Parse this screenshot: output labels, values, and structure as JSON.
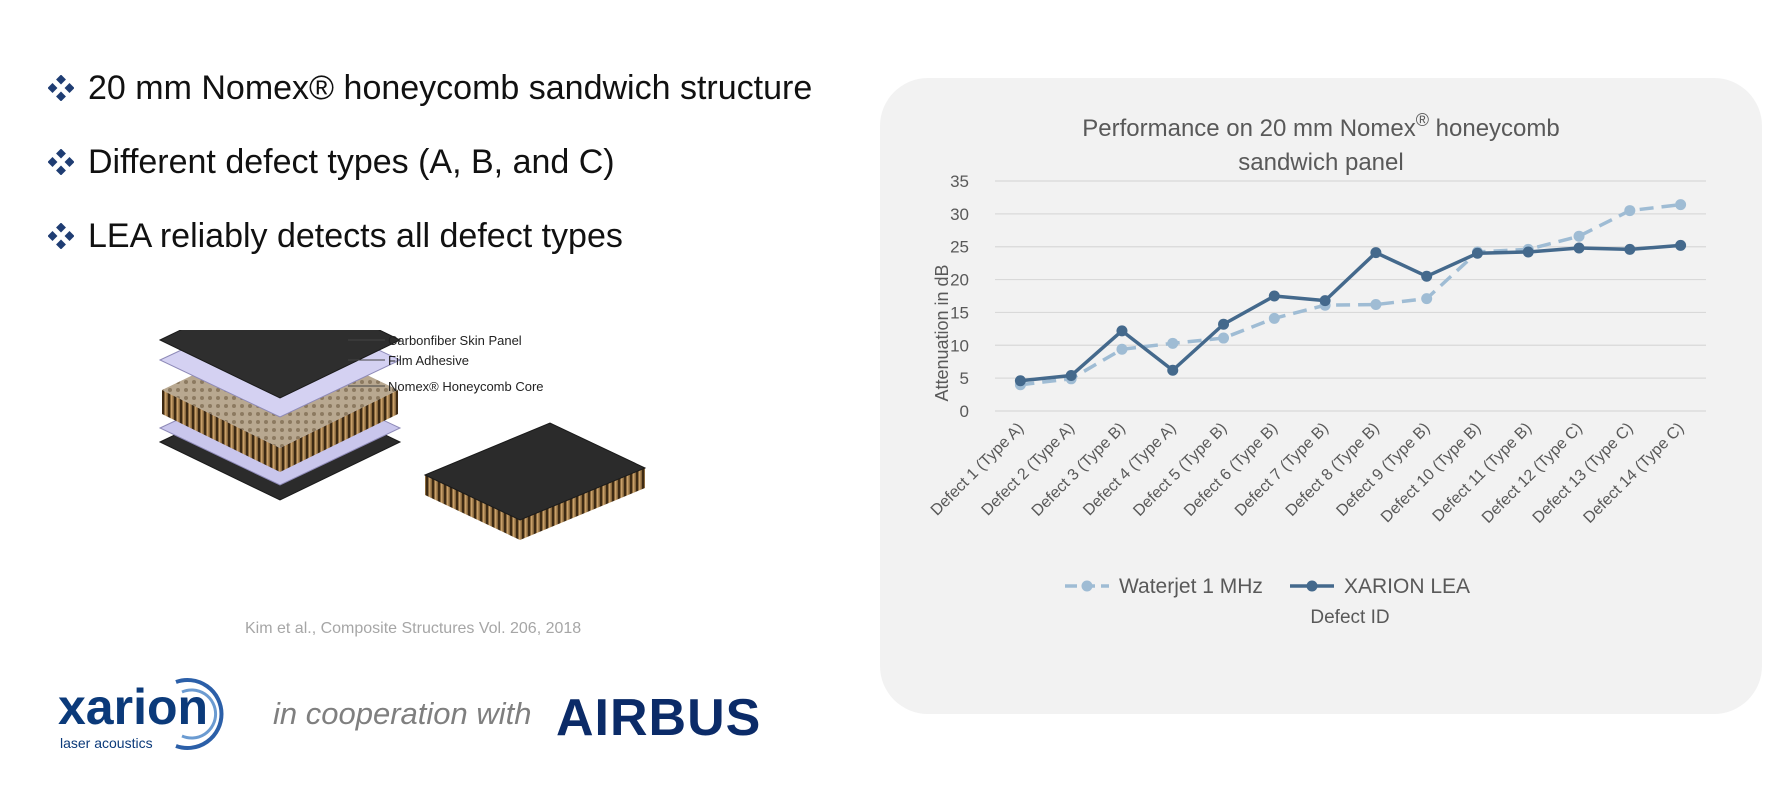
{
  "bullets": [
    {
      "text": "20 mm Nomex® honeycomb sandwich structure",
      "icon": "diamond-bullet-icon"
    },
    {
      "text": "Different defect types (A, B, and C)",
      "icon": "diamond-bullet-icon"
    },
    {
      "text": "LEA reliably detects all defect types",
      "icon": "diamond-bullet-icon"
    }
  ],
  "diagram": {
    "labels": {
      "skin": "Carbonfiber Skin Panel",
      "adhesive": "Film Adhesive",
      "core": "Nomex® Honeycomb Core"
    }
  },
  "caption": "Kim et al., Composite Structures Vol. 206, 2018",
  "logos": {
    "xarion": "xarion",
    "xarion_sub": "laser acoustics",
    "cooperation": "in cooperation with",
    "airbus": "AIRBUS"
  },
  "colors": {
    "bullet": "#1f3d73",
    "waterjet": "#9fbcd4",
    "lea": "#44698c",
    "card": "#f2f2f2",
    "grid": "#d9d9d9",
    "airbus": "#0b2b68"
  },
  "chart_data": {
    "type": "line",
    "title_line1": "Performance on 20 mm Nomex",
    "title_sup": "®",
    "title_line1_end": " honeycomb",
    "title_line2": "sandwich panel",
    "xlabel": "Defect ID",
    "ylabel": "Attenuation in dB",
    "ylim": [
      0,
      35
    ],
    "yticks": [
      0,
      5,
      10,
      15,
      20,
      25,
      30,
      35
    ],
    "grid": true,
    "legend_position": "bottom",
    "categories": [
      "Defect 1 (Type A)",
      "Defect 2 (Type A)",
      "Defect 3 (Type B)",
      "Defect 4 (Type A)",
      "Defect 5 (Type B)",
      "Defect 6 (Type B)",
      "Defect 7 (Type B)",
      "Defect 8 (Type B)",
      "Defect 9 (Type B)",
      "Defect 10 (Type B)",
      "Defect 11 (Type B)",
      "Defect 12 (Type C)",
      "Defect 13 (Type C)",
      "Defect 14 (Type C)"
    ],
    "series": [
      {
        "name": "Waterjet 1 MHz",
        "style": "dashed",
        "values": [
          4.0,
          4.9,
          9.4,
          10.3,
          11.1,
          14.1,
          16.1,
          16.2,
          17.1,
          24.2,
          24.6,
          26.6,
          30.5,
          31.4
        ]
      },
      {
        "name": "XARION LEA",
        "style": "solid",
        "values": [
          4.6,
          5.4,
          12.2,
          6.2,
          13.2,
          17.5,
          16.8,
          24.1,
          20.5,
          24.0,
          24.2,
          24.8,
          24.6,
          25.2
        ]
      }
    ]
  }
}
